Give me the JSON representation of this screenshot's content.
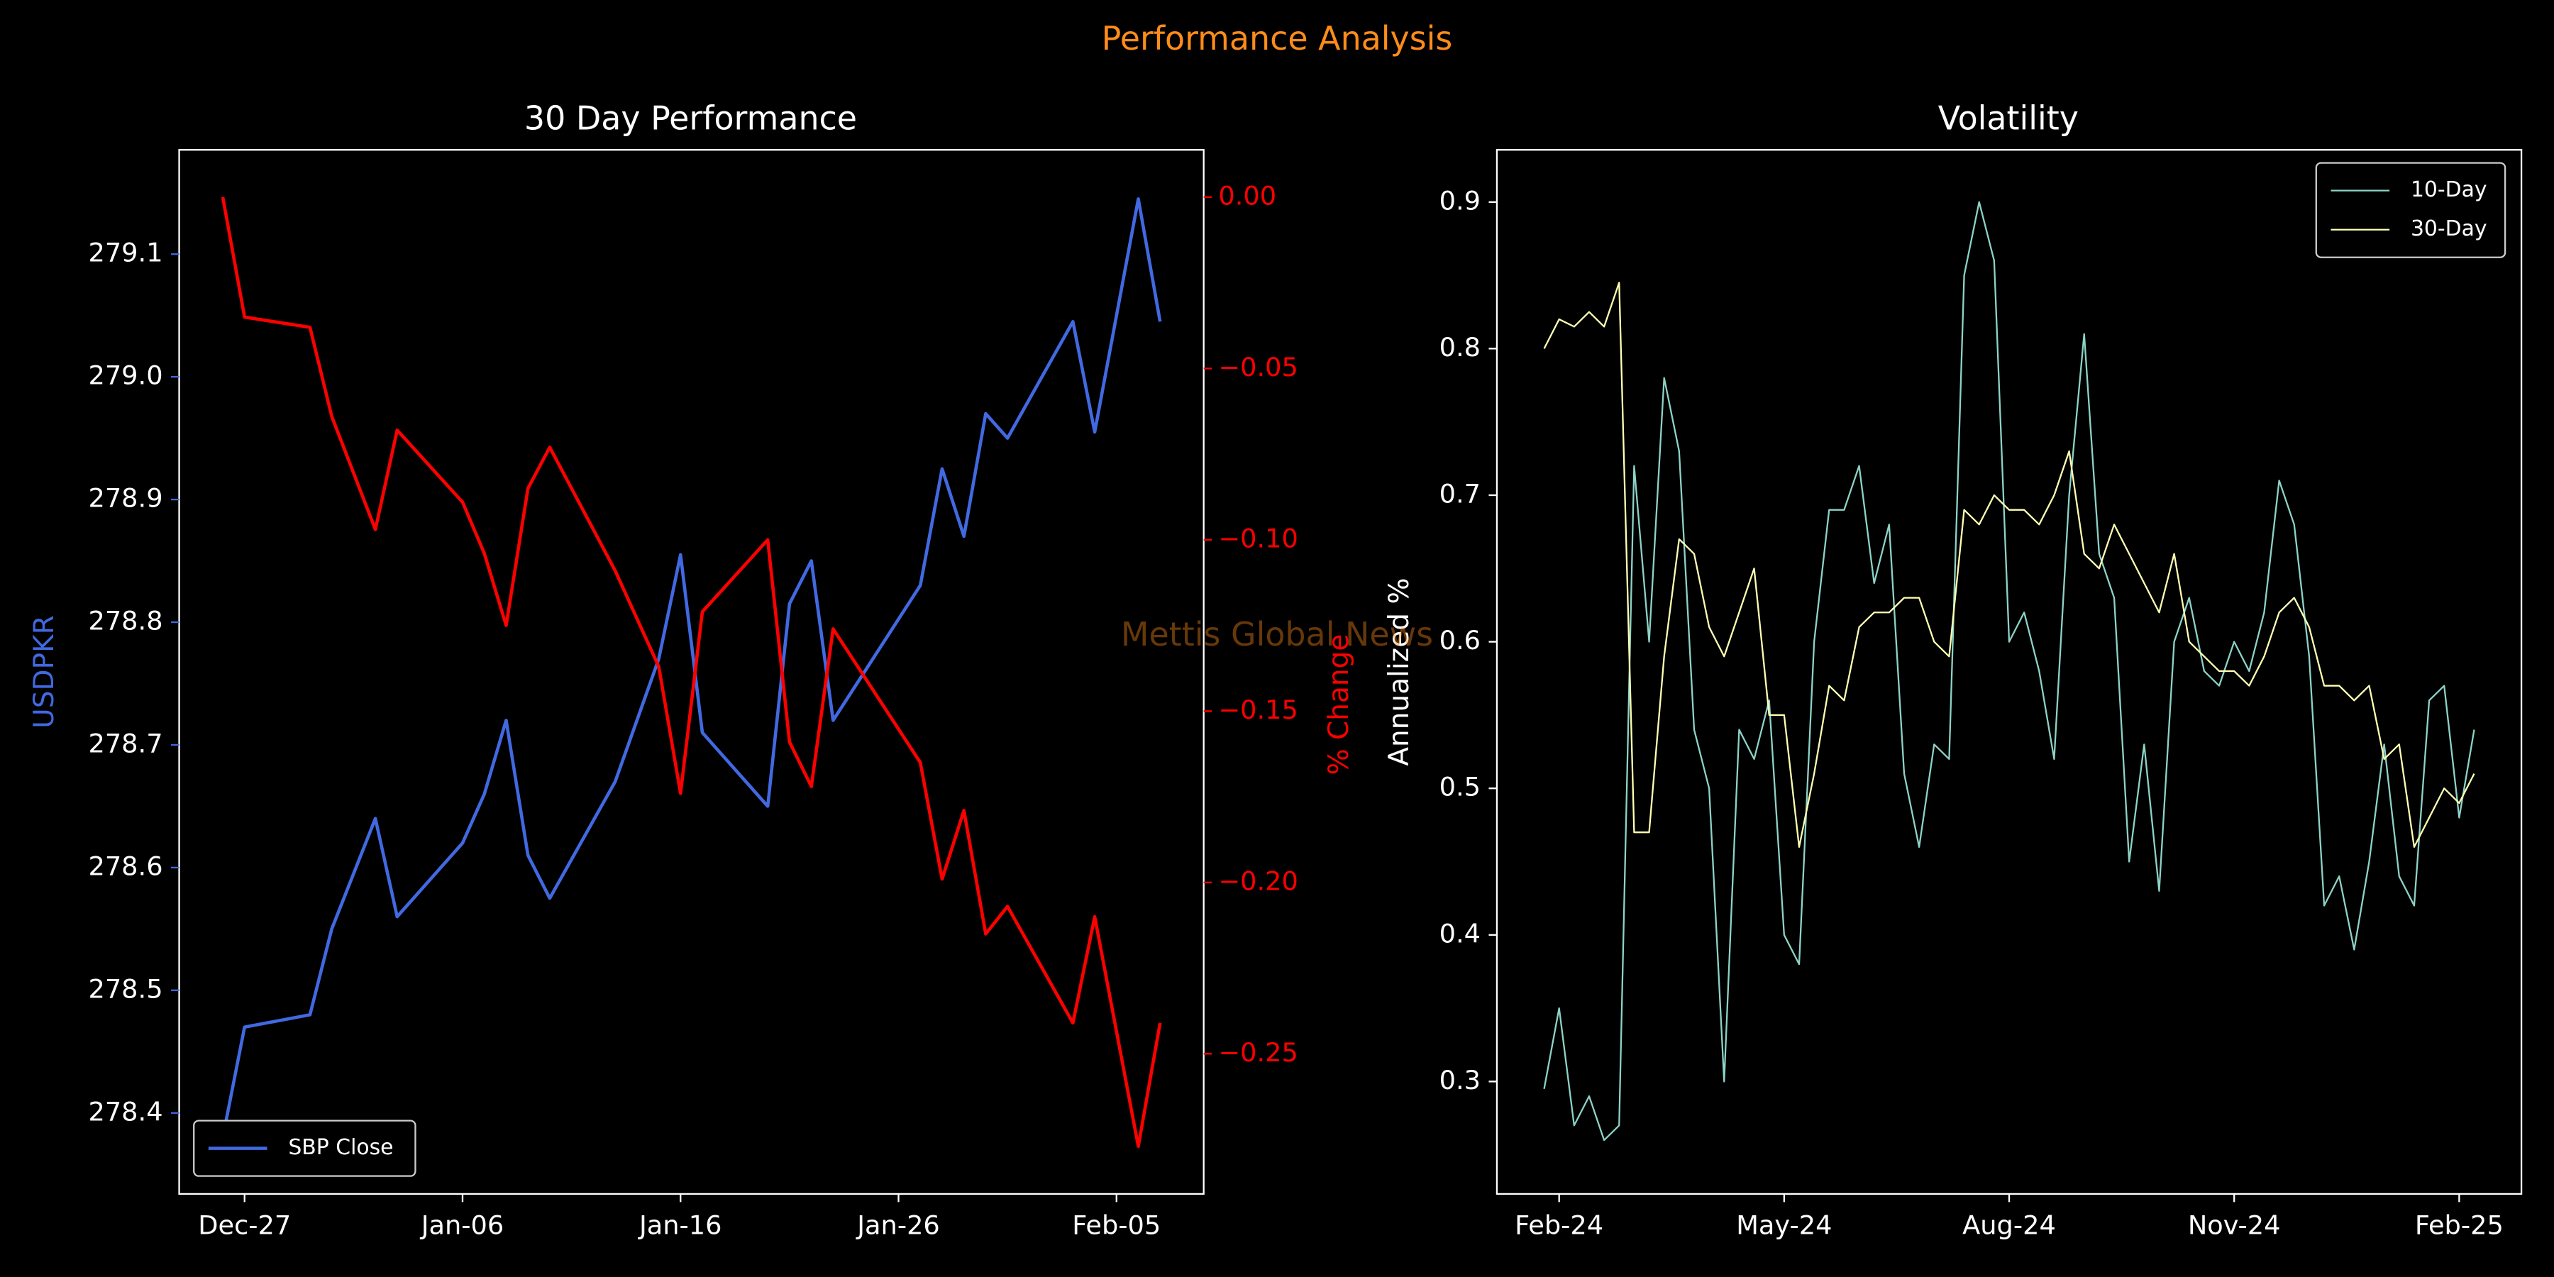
{
  "title": "Performance Analysis",
  "watermark": "Mettis Global News",
  "chart_data": [
    {
      "type": "line",
      "title": "30 Day Performance",
      "ylabel": "USDPKR",
      "y2label": "% Change",
      "x": [
        "Dec-26",
        "Dec-27",
        "Dec-30",
        "Dec-31",
        "Jan-02",
        "Jan-03",
        "Jan-06",
        "Jan-07",
        "Jan-08",
        "Jan-09",
        "Jan-10",
        "Jan-13",
        "Jan-15",
        "Jan-16",
        "Jan-17",
        "Jan-20",
        "Jan-21",
        "Jan-22",
        "Jan-23",
        "Jan-27",
        "Jan-28",
        "Jan-29",
        "Jan-30",
        "Jan-31",
        "Feb-03",
        "Feb-04",
        "Feb-06",
        "Feb-07"
      ],
      "series": [
        {
          "name": "SBP Close",
          "color": "#4169e1",
          "values": [
            278.38,
            278.47,
            278.48,
            278.55,
            278.64,
            278.56,
            278.62,
            278.66,
            278.72,
            278.61,
            278.575,
            278.67,
            278.77,
            278.855,
            278.71,
            278.65,
            278.815,
            278.85,
            278.72,
            278.83,
            278.925,
            278.87,
            278.97,
            278.95,
            279.045,
            278.955,
            279.145,
            279.045
          ]
        },
        {
          "color": "#ff0000",
          "axis": "y2",
          "values": [
            0.0,
            -0.035,
            -0.038,
            -0.064,
            -0.097,
            -0.068,
            -0.089,
            -0.104,
            -0.125,
            -0.085,
            -0.073,
            -0.109,
            -0.137,
            -0.174,
            -0.121,
            -0.1,
            -0.159,
            -0.172,
            -0.126,
            -0.165,
            -0.199,
            -0.179,
            -0.215,
            -0.207,
            -0.241,
            -0.21,
            -0.277,
            -0.241
          ]
        }
      ],
      "xlim": [
        "Dec-24",
        "Feb-09"
      ],
      "xticks": [
        "Dec-27",
        "Jan-06",
        "Jan-16",
        "Jan-26",
        "Feb-05"
      ],
      "ylim": [
        278.334,
        279.185
      ],
      "yticks": [
        278.4,
        278.5,
        278.6,
        278.7,
        278.8,
        278.9,
        {
          "value": 279,
          "label": "279.0"
        },
        279.1
      ],
      "y2lim": [
        -0.2909,
        0.0138
      ],
      "y2ticks": [
        {
          "value": 0,
          "label": "0.00"
        },
        {
          "value": -0.05,
          "label": "−0.05"
        },
        {
          "value": -0.1,
          "label": "−0.10"
        },
        {
          "value": -0.15,
          "label": "−0.15"
        },
        {
          "value": -0.2,
          "label": "−0.20"
        },
        {
          "value": -0.25,
          "label": "−0.25"
        }
      ],
      "legend": "lower left",
      "grid": false
    },
    {
      "type": "line",
      "title": "Volatility",
      "ylabel": "Annualized %",
      "categories": [
        null,
        "Feb-24",
        null,
        null,
        null,
        null,
        null,
        null,
        null,
        null,
        null,
        null,
        null,
        null,
        null,
        null,
        "May-24",
        null,
        null,
        null,
        null,
        null,
        null,
        null,
        null,
        null,
        null,
        null,
        null,
        null,
        null,
        "Aug-24",
        null,
        null,
        null,
        null,
        null,
        null,
        null,
        null,
        null,
        null,
        null,
        null,
        null,
        null,
        "Nov-24",
        null,
        null,
        null,
        null,
        null,
        null,
        null,
        null,
        null,
        null,
        null,
        null,
        null,
        null,
        "Feb-25",
        null
      ],
      "series": [
        {
          "name": "10-Day",
          "color": "#8dd3c7",
          "values": [
            0.295,
            0.35,
            0.27,
            0.29,
            0.26,
            0.27,
            0.72,
            0.6,
            0.78,
            0.73,
            0.54,
            0.5,
            0.3,
            0.54,
            0.52,
            0.56,
            0.4,
            0.38,
            0.6,
            0.69,
            0.69,
            0.72,
            0.64,
            0.68,
            0.51,
            0.46,
            0.53,
            0.52,
            0.85,
            0.9,
            0.86,
            0.6,
            0.62,
            0.58,
            0.52,
            0.7,
            0.81,
            0.66,
            0.63,
            0.45,
            0.53,
            0.43,
            0.6,
            0.63,
            0.58,
            0.57,
            0.6,
            0.58,
            0.62,
            0.71,
            0.68,
            0.59,
            0.42,
            0.44,
            0.39,
            0.45,
            0.53,
            0.44,
            0.42,
            0.56,
            0.57,
            0.48,
            0.54
          ]
        },
        {
          "name": "30-Day",
          "color": "#ffffb3",
          "values": [
            0.8,
            0.82,
            0.815,
            0.825,
            0.815,
            0.845,
            0.47,
            0.47,
            0.59,
            0.67,
            0.66,
            0.61,
            0.59,
            0.62,
            0.65,
            0.55,
            0.55,
            0.46,
            0.51,
            0.57,
            0.56,
            0.61,
            0.62,
            0.62,
            0.63,
            0.63,
            0.6,
            0.59,
            0.69,
            0.68,
            0.7,
            0.69,
            0.69,
            0.68,
            0.7,
            0.73,
            0.66,
            0.65,
            0.68,
            0.66,
            0.64,
            0.62,
            0.66,
            0.6,
            0.59,
            0.58,
            0.58,
            0.57,
            0.59,
            0.62,
            0.63,
            0.61,
            0.57,
            0.57,
            0.56,
            0.57,
            0.52,
            0.53,
            0.46,
            0.48,
            0.5,
            0.49,
            0.51
          ]
        }
      ],
      "ylim": [
        0.2233,
        0.9356
      ],
      "yticks": [
        0.3,
        0.4,
        0.5,
        0.6,
        0.7,
        0.8,
        0.9
      ],
      "legend": "upper right",
      "grid": false
    }
  ]
}
